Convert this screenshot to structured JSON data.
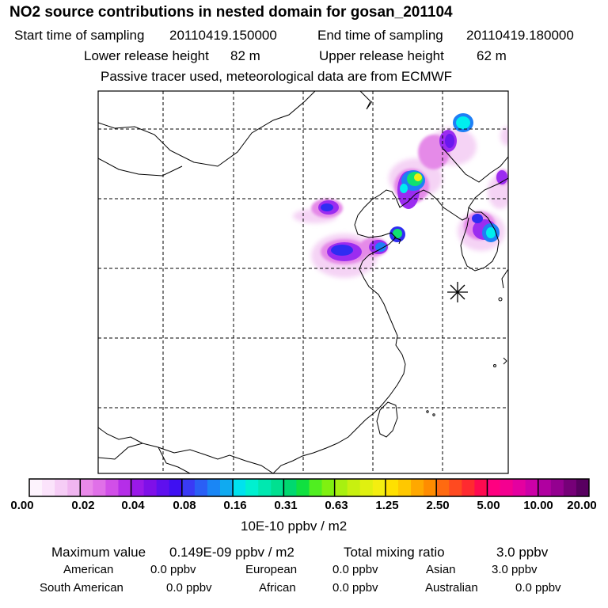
{
  "title": "NO2 source contributions in nested domain for gosan_201104",
  "header": {
    "start_label": "Start time of sampling",
    "start_value": "20110419.150000",
    "end_label": "End time of sampling",
    "end_value": "20110419.180000",
    "lower_label": "Lower release height",
    "lower_value": "82 m",
    "upper_label": "Upper release height",
    "upper_value": "62 m",
    "note": "Passive tracer used, meteorological data are from ECMWF"
  },
  "colorbar": {
    "labels": [
      "0.00",
      "0.02",
      "0.04",
      "0.08",
      "0.16",
      "0.31",
      "0.63",
      "1.25",
      "2.50",
      "5.00",
      "10.00",
      "20.00"
    ],
    "colors": [
      "#fdf3fd",
      "#fbe3fb",
      "#f6cdf6",
      "#f0b5f0",
      "#e989e9",
      "#e070e8",
      "#d14fe8",
      "#b52ee8",
      "#9a19e8",
      "#7f10e8",
      "#5f10ee",
      "#3f10f2",
      "#3a3af5",
      "#2a5ff5",
      "#1a86f5",
      "#10aaf0",
      "#00e2ee",
      "#00f0d0",
      "#00e8b0",
      "#00e090",
      "#00d870",
      "#10e040",
      "#50ee20",
      "#80f010",
      "#a8f010",
      "#c8f010",
      "#e0f010",
      "#f4ee10",
      "#ffe000",
      "#ffc800",
      "#ffa800",
      "#ff8c00",
      "#ff6a10",
      "#ff4a20",
      "#ff2a30",
      "#ff0a50",
      "#ff0080",
      "#f40090",
      "#e400a0",
      "#cc00a8",
      "#b000a0",
      "#940090",
      "#760078",
      "#580060"
    ],
    "unit": "10E-10 ppbv / m2"
  },
  "summary": {
    "max_label": "Maximum value",
    "max_value": "0.149E-09 ppbv / m2",
    "total_label": "Total mixing ratio",
    "total_value": "3.0 ppbv"
  },
  "regions": [
    {
      "name": "American",
      "value": "0.0 ppbv"
    },
    {
      "name": "European",
      "value": "0.0 ppbv"
    },
    {
      "name": "Asian",
      "value": "3.0 ppbv"
    },
    {
      "name": "South American",
      "value": "0.0 ppbv"
    },
    {
      "name": "African",
      "value": "0.0 ppbv"
    },
    {
      "name": "Australian",
      "value": "0.0 ppbv"
    }
  ],
  "map": {
    "receptor_marker": "asterisk-icon",
    "plume_colors": {
      "faint": "#f3c8f3",
      "light": "#e58ae8",
      "magenta": "#c24ff0",
      "violet": "#9b2cf0",
      "purple": "#6a18ee",
      "blue": "#2f2cf2",
      "mid_blue": "#1e7ff5",
      "cyan": "#00eeee",
      "green": "#10e070",
      "yellow": "#eef010"
    }
  }
}
